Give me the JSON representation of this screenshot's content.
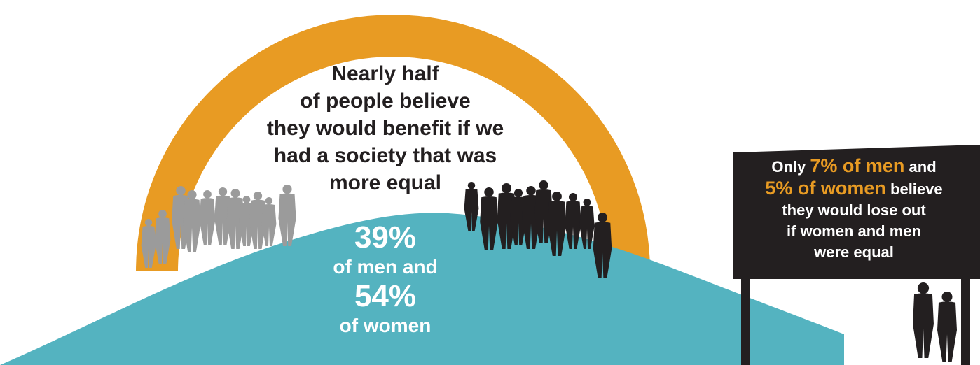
{
  "colors": {
    "arc": "#e89b23",
    "hill": "#54b3c0",
    "sign": "#231f20",
    "highlight": "#e89b23",
    "silhouette_grey": "#9b9b9b",
    "silhouette_dark": "#231f20"
  },
  "headline": {
    "lines": [
      "Nearly half",
      "of people believe",
      "they would benefit if we",
      "had a society that was",
      "more equal"
    ]
  },
  "stats": {
    "men_value": "39%",
    "men_label": "of men and",
    "women_value": "54%",
    "women_label": "of women"
  },
  "sign": {
    "prefix": "Only",
    "men_highlight": "7% of men",
    "and": "and",
    "women_highlight": "5% of women",
    "believe": "believe",
    "line3": "they would lose out",
    "line4": "if women and men",
    "line5": "were equal"
  },
  "icons": {
    "grey_crowd": "people-silhouette-group-icon",
    "dark_crowd": "people-silhouette-group-icon",
    "couple": "couple-silhouette-icon"
  }
}
